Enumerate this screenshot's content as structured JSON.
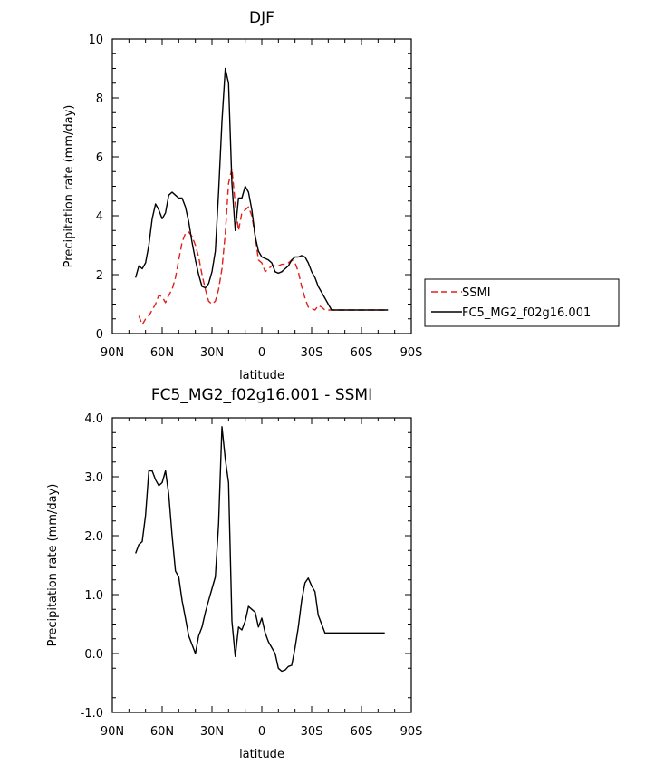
{
  "chart_data": [
    {
      "type": "line",
      "title": "DJF",
      "xlabel": "latitude",
      "ylabel": "Precipitation rate (mm/day)",
      "xlim": [
        90,
        -90
      ],
      "ylim": [
        0,
        10
      ],
      "xticks": [
        90,
        60,
        30,
        0,
        -30,
        -60,
        -90
      ],
      "xticklabels": [
        "90N",
        "60N",
        "30N",
        "0",
        "30S",
        "60S",
        "90S"
      ],
      "yticks": [
        0,
        2,
        4,
        6,
        8,
        10
      ],
      "yticklabels": [
        "0",
        "2",
        "4",
        "6",
        "8",
        "10"
      ],
      "legend_position": "right",
      "series": [
        {
          "name": "SSMI",
          "color": "#e0201b",
          "dashed": true,
          "x": [
            74,
            72,
            70,
            68,
            66,
            64,
            62,
            60,
            58,
            56,
            54,
            52,
            50,
            48,
            46,
            44,
            42,
            40,
            38,
            36,
            34,
            32,
            30,
            28,
            26,
            24,
            22,
            20,
            18,
            16,
            14,
            12,
            10,
            8,
            6,
            4,
            2,
            0,
            -2,
            -4,
            -6,
            -8,
            -10,
            -12,
            -14,
            -16,
            -18,
            -20,
            -22,
            -24,
            -26,
            -28,
            -30,
            -32,
            -34,
            -36,
            -38,
            -40,
            -42,
            -44,
            -46,
            -48,
            -50,
            -52,
            -54,
            -56,
            -58,
            -60,
            -62,
            -64,
            -66,
            -68,
            -70,
            -72,
            -74
          ],
          "y": [
            0.6,
            0.3,
            0.5,
            0.6,
            0.8,
            1.0,
            1.3,
            1.25,
            1.05,
            1.3,
            1.5,
            1.9,
            2.5,
            3.1,
            3.4,
            3.45,
            3.3,
            3.0,
            2.6,
            2.0,
            1.5,
            1.1,
            1.0,
            1.1,
            1.5,
            2.2,
            3.4,
            5.1,
            5.6,
            4.4,
            3.5,
            4.1,
            4.2,
            4.3,
            4.0,
            3.3,
            2.5,
            2.4,
            2.1,
            2.2,
            2.3,
            2.3,
            2.3,
            2.35,
            2.35,
            2.4,
            2.5,
            2.4,
            2.1,
            1.6,
            1.2,
            0.9,
            0.85,
            0.8,
            0.95,
            0.9,
            0.8,
            0.8,
            0.8,
            0.8,
            0.8,
            0.8,
            0.8,
            0.8,
            0.8,
            0.8,
            0.8,
            0.8,
            0.8,
            0.8,
            0.8,
            0.8,
            0.8,
            0.8,
            0.8
          ]
        },
        {
          "name": "FC5_MG2_f02g16.001",
          "color": "#000000",
          "dashed": false,
          "x": [
            76,
            74,
            72,
            70,
            68,
            66,
            64,
            62,
            60,
            58,
            56,
            54,
            52,
            50,
            48,
            46,
            44,
            42,
            40,
            38,
            36,
            34,
            32,
            30,
            28,
            26,
            24,
            22,
            20,
            18,
            16,
            14,
            12,
            10,
            8,
            6,
            4,
            2,
            0,
            -2,
            -4,
            -6,
            -8,
            -10,
            -12,
            -14,
            -16,
            -18,
            -20,
            -22,
            -24,
            -26,
            -28,
            -30,
            -32,
            -34,
            -36,
            -38,
            -40,
            -42,
            -44,
            -46,
            -48,
            -50,
            -52,
            -54,
            -56,
            -58,
            -60,
            -62,
            -64,
            -66,
            -68,
            -70,
            -72,
            -74,
            -76
          ],
          "y": [
            1.9,
            2.3,
            2.2,
            2.4,
            3.0,
            3.9,
            4.4,
            4.2,
            3.9,
            4.1,
            4.7,
            4.8,
            4.7,
            4.6,
            4.6,
            4.3,
            3.8,
            3.1,
            2.5,
            2.0,
            1.6,
            1.55,
            1.7,
            2.1,
            2.8,
            4.8,
            7.2,
            9.0,
            8.5,
            5.1,
            3.5,
            4.6,
            4.6,
            5.0,
            4.8,
            4.2,
            3.3,
            2.8,
            2.6,
            2.55,
            2.5,
            2.4,
            2.1,
            2.05,
            2.1,
            2.2,
            2.3,
            2.5,
            2.6,
            2.6,
            2.65,
            2.6,
            2.4,
            2.1,
            1.9,
            1.6,
            1.4,
            1.2,
            1.0,
            0.8,
            0.8,
            0.8,
            0.8,
            0.8,
            0.8,
            0.8,
            0.8,
            0.8,
            0.8,
            0.8,
            0.8,
            0.8,
            0.8,
            0.8,
            0.8,
            0.8,
            0.8
          ]
        }
      ]
    },
    {
      "type": "line",
      "title": "FC5_MG2_f02g16.001 - SSMI",
      "xlabel": "latitude",
      "ylabel": "Precipitation rate (mm/day)",
      "xlim": [
        90,
        -90
      ],
      "ylim": [
        -1,
        4
      ],
      "xticks": [
        90,
        60,
        30,
        0,
        -30,
        -60,
        -90
      ],
      "xticklabels": [
        "90N",
        "60N",
        "30N",
        "0",
        "30S",
        "60S",
        "90S"
      ],
      "yticks": [
        -1,
        0,
        1,
        2,
        3,
        4
      ],
      "yticklabels": [
        "-1.0",
        "0.0",
        "1.0",
        "2.0",
        "3.0",
        "4.0"
      ],
      "series": [
        {
          "name": "",
          "color": "#000000",
          "dashed": false,
          "x": [
            76,
            74,
            72,
            70,
            68,
            66,
            64,
            62,
            60,
            58,
            56,
            54,
            52,
            50,
            48,
            46,
            44,
            42,
            40,
            38,
            36,
            34,
            32,
            30,
            28,
            26,
            24,
            22,
            20,
            18,
            16,
            14,
            12,
            10,
            8,
            6,
            4,
            2,
            0,
            -2,
            -4,
            -6,
            -8,
            -10,
            -12,
            -14,
            -16,
            -18,
            -20,
            -22,
            -24,
            -26,
            -28,
            -30,
            -32,
            -34,
            -36,
            -38,
            -40,
            -42,
            -44,
            -46,
            -48,
            -50,
            -52,
            -54,
            -56,
            -58,
            -60,
            -62,
            -64,
            -66,
            -68,
            -70,
            -72,
            -74
          ],
          "y": [
            1.7,
            1.85,
            1.9,
            2.35,
            3.1,
            3.1,
            2.95,
            2.85,
            2.9,
            3.1,
            2.7,
            2.0,
            1.4,
            1.3,
            0.9,
            0.6,
            0.3,
            0.15,
            0.0,
            0.3,
            0.45,
            0.7,
            0.9,
            1.1,
            1.3,
            2.2,
            3.85,
            3.3,
            2.9,
            0.55,
            -0.05,
            0.45,
            0.4,
            0.55,
            0.8,
            0.75,
            0.7,
            0.45,
            0.6,
            0.35,
            0.2,
            0.1,
            0.0,
            -0.25,
            -0.3,
            -0.28,
            -0.22,
            -0.2,
            0.1,
            0.45,
            0.9,
            1.2,
            1.28,
            1.15,
            1.05,
            0.65,
            0.5,
            0.35,
            0.35,
            0.35,
            0.35,
            0.35,
            0.35,
            0.35,
            0.35,
            0.35,
            0.35,
            0.35,
            0.35,
            0.35,
            0.35,
            0.35,
            0.35,
            0.35,
            0.35,
            0.35
          ]
        }
      ]
    }
  ]
}
